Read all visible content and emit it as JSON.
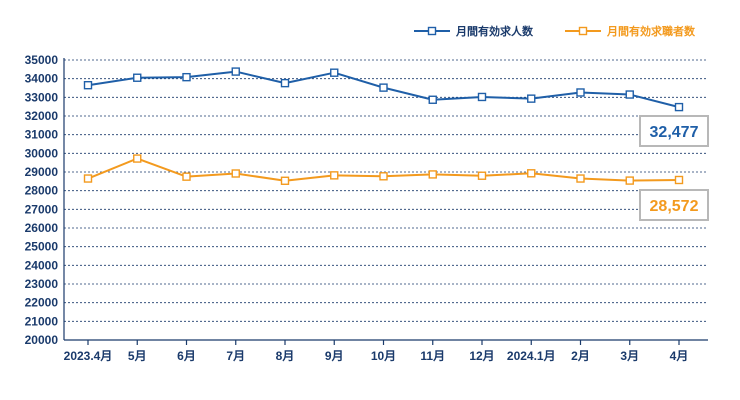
{
  "chart_data": {
    "type": "line",
    "categories": [
      "2023.4月",
      "5月",
      "6月",
      "7月",
      "8月",
      "9月",
      "10月",
      "11月",
      "12月",
      "2024.1月",
      "2月",
      "3月",
      "4月"
    ],
    "series": [
      {
        "name": "月間有効求人数",
        "color": "#1f5fa8",
        "values": [
          33650,
          34050,
          34080,
          34380,
          33760,
          34320,
          33520,
          32870,
          33020,
          32930,
          33260,
          33150,
          32477
        ]
      },
      {
        "name": "月間有効求職者数",
        "color": "#f39a1e",
        "values": [
          28650,
          29720,
          28750,
          28920,
          28530,
          28820,
          28770,
          28870,
          28800,
          28930,
          28650,
          28540,
          28572
        ]
      }
    ],
    "callouts": [
      {
        "series": 0,
        "text": "32,477"
      },
      {
        "series": 1,
        "text": "28,572"
      }
    ],
    "yticks": [
      "35000",
      "34000",
      "33000",
      "32000",
      "31000",
      "30000",
      "29000",
      "28000",
      "27000",
      "26000",
      "25000",
      "24000",
      "23000",
      "22000",
      "21000",
      "20000"
    ],
    "ylim": [
      20000,
      35000
    ],
    "grid": true,
    "legend_position": "top-right",
    "marker": "hollow-square",
    "axis_color": "#1a3a6b",
    "grid_color": "#1a3a6b"
  }
}
